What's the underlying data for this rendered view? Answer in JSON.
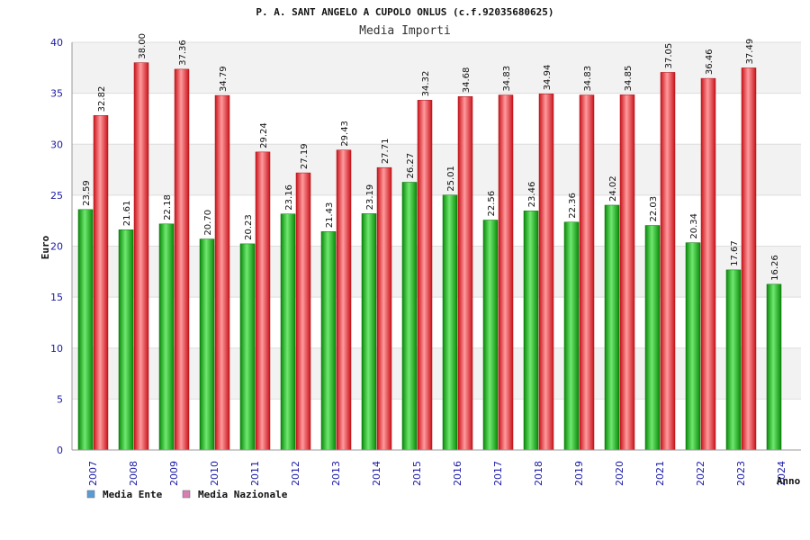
{
  "chart_data": {
    "type": "bar",
    "title": "P. A. SANT ANGELO A CUPOLO ONLUS (c.f.92035680625)",
    "subtitle": "Media Importi",
    "xlabel": "Anno",
    "ylabel": "Euro",
    "ylim": [
      0,
      40
    ],
    "yticks": [
      0,
      5,
      10,
      15,
      20,
      25,
      30,
      35,
      40
    ],
    "grid": true,
    "legend_position": "bottom-left",
    "categories": [
      "2007",
      "2008",
      "2009",
      "2010",
      "2011",
      "2012",
      "2013",
      "2014",
      "2015",
      "2016",
      "2017",
      "2018",
      "2019",
      "2020",
      "2021",
      "2022",
      "2023",
      "2024"
    ],
    "series": [
      {
        "name": "Media Ente",
        "color": "#1fb81f",
        "legend_color": "#5b9bd5",
        "values": [
          23.59,
          21.61,
          22.18,
          20.7,
          20.23,
          23.16,
          21.43,
          23.19,
          26.27,
          25.01,
          22.56,
          23.46,
          22.36,
          24.02,
          22.03,
          20.34,
          17.67,
          16.26
        ],
        "labels": [
          "23.59",
          "21.61",
          "22.18",
          "20.70",
          "20.23",
          "23.16",
          "21.43",
          "23.19",
          "26.27",
          "25.01",
          "22.56",
          "23.46",
          "22.36",
          "24.02",
          "22.03",
          "20.34",
          "17.67",
          "16.26"
        ]
      },
      {
        "name": "Media Nazionale",
        "color": "#e8383d",
        "legend_color": "#d77fb3",
        "values": [
          32.82,
          38.0,
          37.36,
          34.79,
          29.24,
          27.19,
          29.43,
          27.71,
          34.32,
          34.68,
          34.83,
          34.94,
          34.83,
          34.85,
          37.05,
          36.46,
          37.49,
          null
        ],
        "labels": [
          "32.82",
          "38.00",
          "37.36",
          "34.79",
          "29.24",
          "27.19",
          "29.43",
          "27.71",
          "34.32",
          "34.68",
          "34.83",
          "34.94",
          "34.83",
          "34.85",
          "37.05",
          "36.46",
          "37.49",
          null
        ]
      }
    ]
  }
}
